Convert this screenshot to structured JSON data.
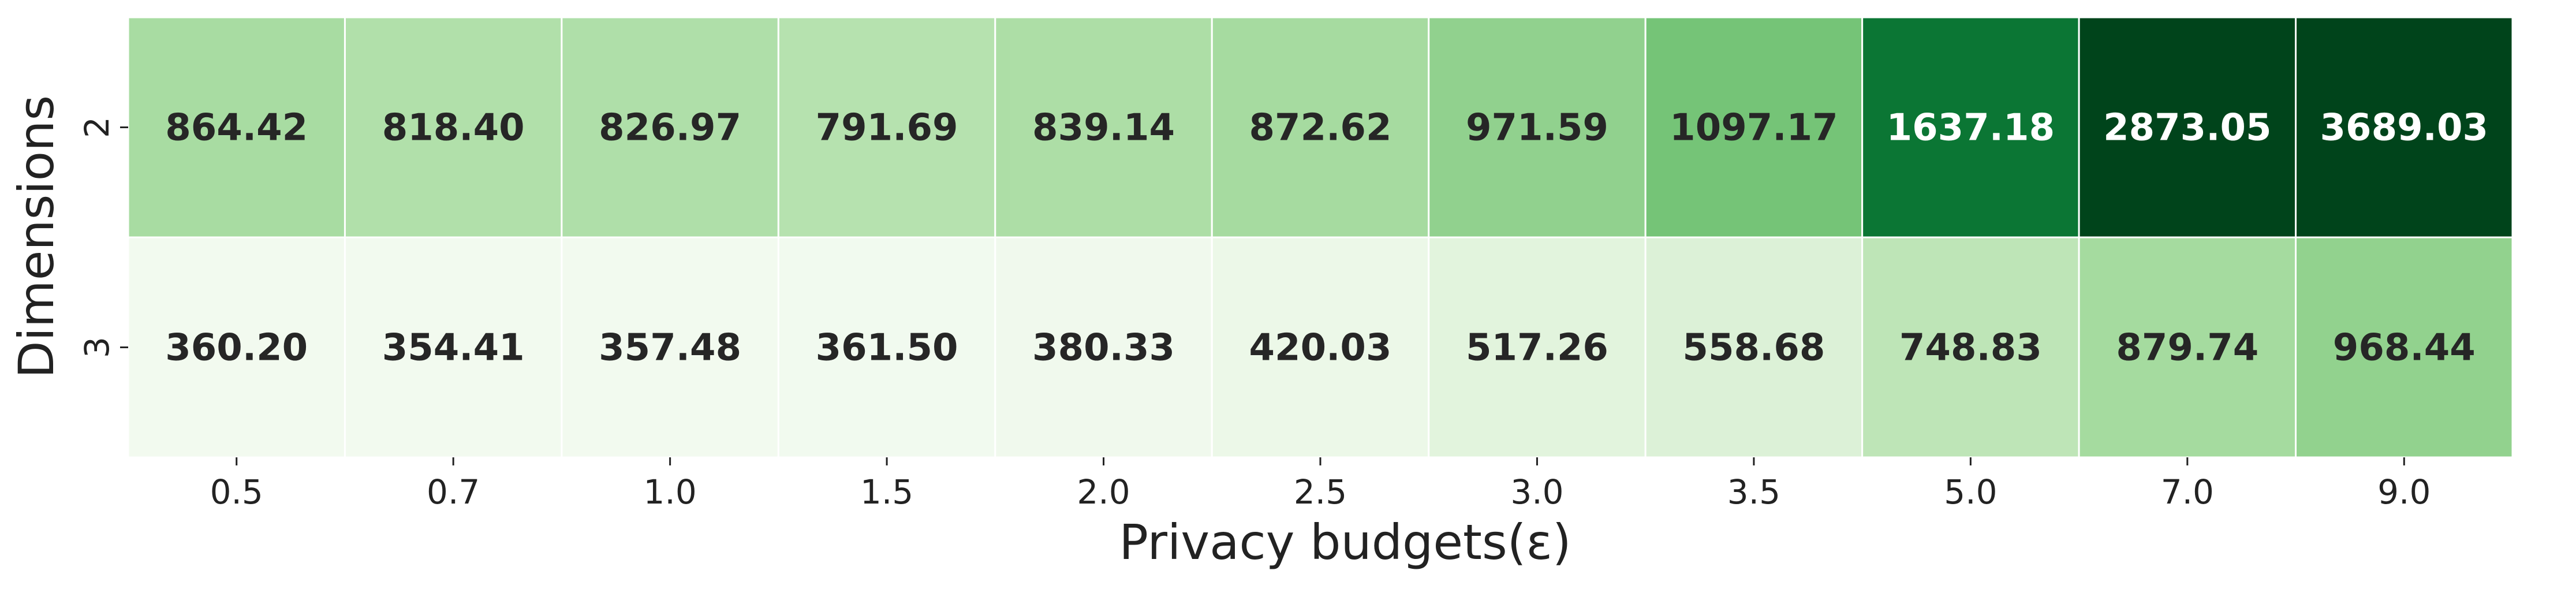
{
  "chart_data": {
    "type": "heatmap",
    "title": "",
    "xlabel": "Privacy budgets(ε)",
    "ylabel": "Dimensions",
    "x_categories": [
      "0.5",
      "0.7",
      "1.0",
      "1.5",
      "2.0",
      "2.5",
      "3.0",
      "3.5",
      "5.0",
      "7.0",
      "9.0"
    ],
    "y_categories": [
      "2",
      "3"
    ],
    "values": [
      [
        864.42,
        818.4,
        826.97,
        791.69,
        839.14,
        872.62,
        971.59,
        1097.17,
        1637.18,
        2873.05,
        3689.03
      ],
      [
        360.2,
        354.41,
        357.48,
        361.5,
        380.33,
        420.03,
        517.26,
        558.68,
        748.83,
        879.74,
        968.44
      ]
    ],
    "value_labels": [
      [
        "864.42",
        "818.40",
        "826.97",
        "791.69",
        "839.14",
        "872.62",
        "971.59",
        "1097.17",
        "1637.18",
        "2873.05",
        "3689.03"
      ],
      [
        "360.20",
        "354.41",
        "357.48",
        "361.50",
        "380.33",
        "420.03",
        "517.26",
        "558.68",
        "748.83",
        "879.74",
        "968.44"
      ]
    ],
    "colormap": "Greens",
    "color_range": [
      300,
      1900
    ],
    "colorbar": false,
    "grid": false,
    "cell_border_color": "#ffffff",
    "text_color_dark": "#262626",
    "text_color_light": "#ffffff"
  }
}
